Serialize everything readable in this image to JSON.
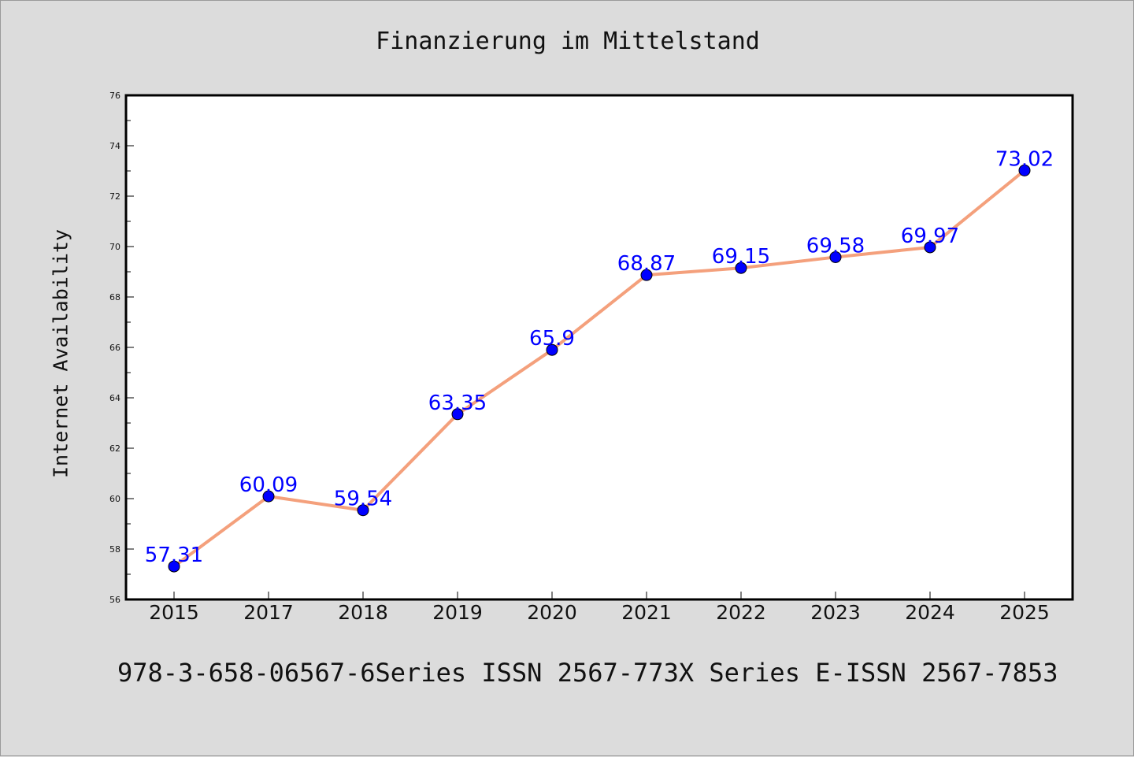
{
  "page": {
    "title": "Finanzierung im Mittelstand",
    "footer": "978-3-658-06567-6Series ISSN 2567-773X Series E-ISSN 2567-7853"
  },
  "chart_data": {
    "type": "line",
    "title": "Finanzierung im Mittelstand",
    "xlabel": "",
    "ylabel": "Internet Availability",
    "categories": [
      "2015",
      "2017",
      "2018",
      "2019",
      "2020",
      "2021",
      "2022",
      "2023",
      "2024",
      "2025"
    ],
    "series": [
      {
        "values": [
          57.31,
          60.09,
          59.54,
          63.35,
          65.9,
          68.87,
          69.15,
          69.58,
          69.97,
          73.02
        ],
        "labels": [
          "57.31",
          "60.09",
          "59.54",
          "63.35",
          "65.9",
          "68.87",
          "69.15",
          "69.58",
          "69.97",
          "73.02"
        ],
        "line_color": "#f4a07c",
        "marker_color": "#0000ff",
        "label_color": "#0000ff"
      }
    ],
    "ylim": [
      56,
      76
    ],
    "yticks": [
      "56",
      "58",
      "60",
      "62",
      "64",
      "66",
      "68",
      "70",
      "72",
      "74",
      "76"
    ],
    "grid": false,
    "legend": "none"
  }
}
